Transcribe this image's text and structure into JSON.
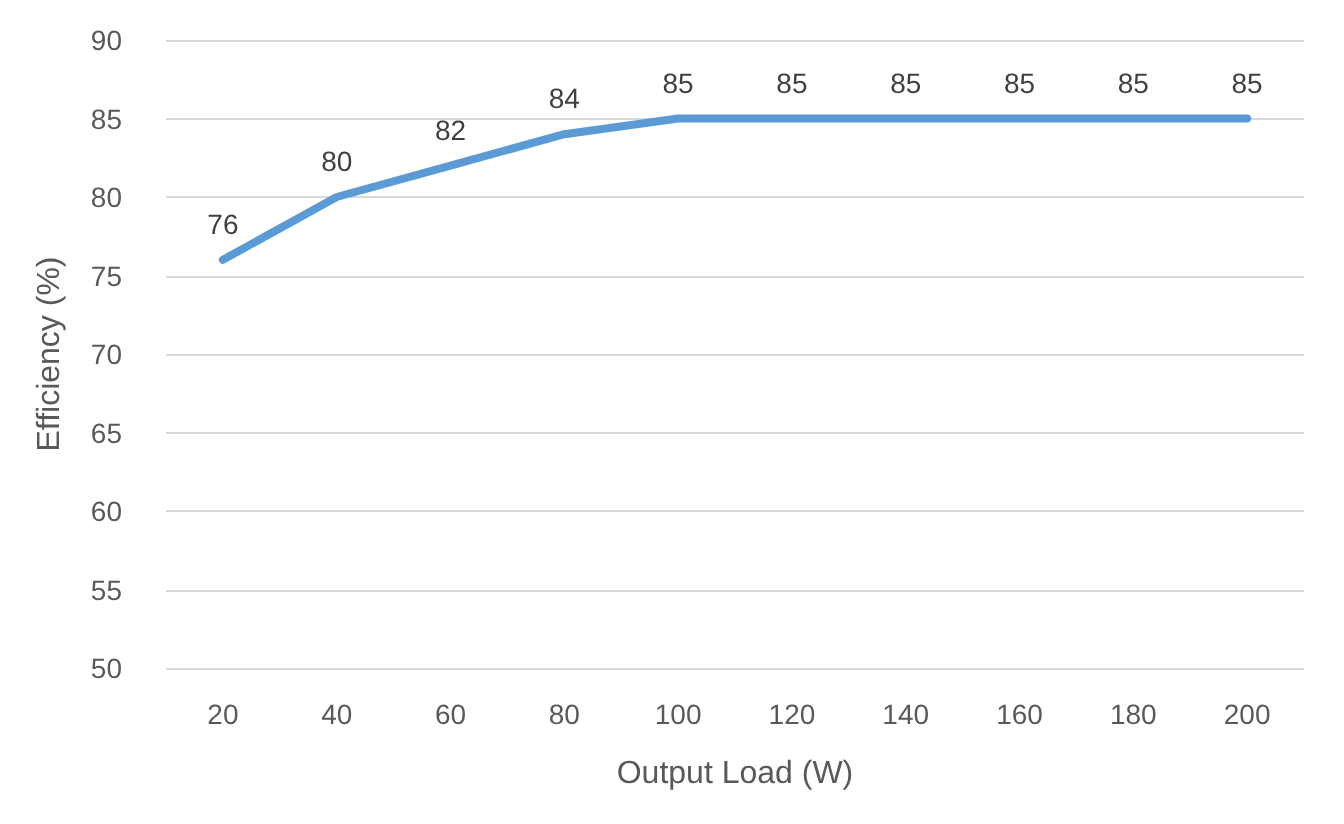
{
  "chart_data": {
    "type": "line",
    "xlabel": "Output Load (W)",
    "ylabel": "Efficiency (%)",
    "categories": [
      "20",
      "40",
      "60",
      "80",
      "100",
      "120",
      "140",
      "160",
      "180",
      "200"
    ],
    "series": [
      {
        "color": "#5b9bd5",
        "values": [
          76,
          80,
          82,
          84,
          85,
          85,
          85,
          85,
          85,
          85
        ]
      }
    ],
    "ylim": [
      50,
      90
    ],
    "yticks": [
      50,
      55,
      60,
      65,
      70,
      75,
      80,
      85,
      90
    ],
    "grid": "y",
    "data_labels": true,
    "marker": "none",
    "line_style": "solid"
  }
}
